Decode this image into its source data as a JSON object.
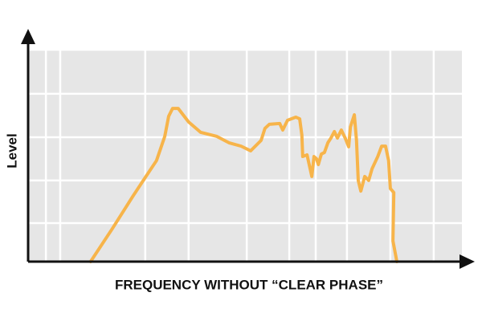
{
  "chart_data": {
    "type": "line",
    "ylabel": "Level",
    "xlabel": "FREQUENCY WITHOUT “CLEAR PHASE”",
    "xlim": [
      0,
      100
    ],
    "ylim": [
      0,
      100
    ],
    "xticks": [
      4.1,
      7.4,
      27,
      37,
      50.4,
      60.2,
      66.3,
      73.5,
      83.5,
      93.5
    ],
    "yticks": [
      18.2,
      38.3,
      58.7,
      79.2,
      100
    ],
    "grid": true,
    "series": [
      {
        "color": "#f7b44a",
        "x": [
          14.4,
          19.4,
          24.1,
          26.9,
          29.6,
          31.5,
          32.4,
          33.3,
          34.6,
          37.0,
          39.8,
          43.5,
          46.3,
          49.1,
          51.3,
          53.7,
          54.6,
          55.6,
          58.0,
          58.7,
          59.8,
          61.7,
          62.6,
          63.1,
          63.3,
          64.3,
          65.0,
          65.4,
          65.9,
          66.5,
          66.9,
          67.6,
          68.3,
          69.1,
          69.8,
          70.6,
          71.3,
          72.2,
          73.1,
          73.9,
          74.3,
          75.2,
          75.7,
          76.1,
          76.7,
          77.6,
          78.5,
          79.3,
          80.6,
          81.5,
          82.4,
          83.1,
          83.5,
          84.3,
          84.1,
          85.0
        ],
        "values": [
          0,
          15.5,
          30.7,
          39.4,
          47.7,
          59.1,
          68.6,
          72.3,
          72.3,
          65.9,
          61.0,
          59.1,
          56.1,
          54.5,
          52.3,
          57.2,
          62.9,
          64.8,
          65.2,
          62.1,
          66.7,
          68.2,
          67.4,
          59.8,
          49.6,
          50.4,
          43.9,
          40.2,
          49.6,
          48.5,
          45.8,
          50.8,
          51.5,
          56.1,
          58.3,
          61.4,
          58.3,
          62.1,
          58.3,
          54.2,
          63.6,
          69.3,
          57.2,
          38.3,
          33.3,
          40.2,
          38.3,
          43.9,
          49.6,
          54.5,
          54.5,
          47.7,
          34.5,
          32.6,
          9.8,
          0
        ]
      }
    ]
  }
}
